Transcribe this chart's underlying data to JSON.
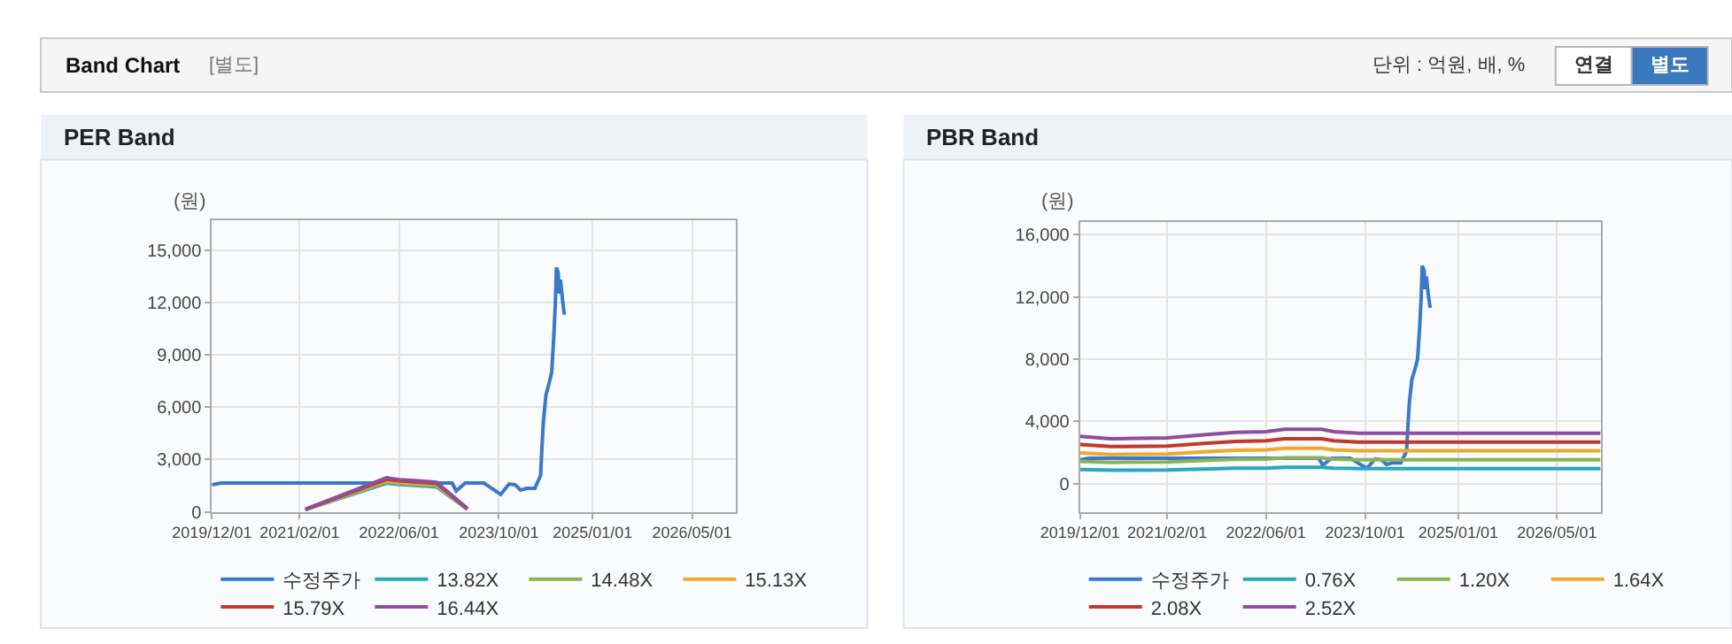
{
  "chart_data": [
    {
      "type": "line",
      "title": "PER Band",
      "ylabel": "(원)",
      "annotations": [
        "Band Chart",
        "[별도]",
        "단위 : 억원, 배, %",
        "연결",
        "별도"
      ],
      "xlim": [
        "2019-12-01",
        "2026-12-01"
      ],
      "xticks": [
        {
          "value": "2019-12-01",
          "label": "2019/12/01"
        },
        {
          "value": "2021-02-01",
          "label": "2021/02/01"
        },
        {
          "value": "2022-06-01",
          "label": "2022/06/01"
        },
        {
          "value": "2023-10-01",
          "label": "2023/10/01"
        },
        {
          "value": "2025-01-01",
          "label": "2025/01/01"
        },
        {
          "value": "2026-05-01",
          "label": "2026/05/01"
        }
      ],
      "ylim": [
        0,
        16700
      ],
      "yticks": [
        {
          "value": 0,
          "label": "0"
        },
        {
          "value": 3000,
          "label": "3,000"
        },
        {
          "value": 6000,
          "label": "6,000"
        },
        {
          "value": 9000,
          "label": "9,000"
        },
        {
          "value": 12000,
          "label": "12,000"
        },
        {
          "value": 15000,
          "label": "15,000"
        }
      ],
      "grid": true,
      "legend": "bottom",
      "series": [
        {
          "name": "수정주가",
          "color": "#3a78c9",
          "x": [
            "2019-12-01",
            "2020-01-15",
            "2023-02-15",
            "2023-03-07",
            "2023-04-20",
            "2023-07-20",
            "2023-10-10",
            "2023-11-20",
            "2023-12-20",
            "2024-01-15",
            "2024-02-15",
            "2024-03-25",
            "2024-04-22",
            "2024-04-28",
            "2024-05-05",
            "2024-05-18",
            "2024-06-01",
            "2024-06-15",
            "2024-06-25",
            "2024-07-03",
            "2024-07-08",
            "2024-07-17",
            "2024-07-22",
            "2024-07-28",
            "2024-08-08",
            "2024-08-16"
          ],
          "values": [
            1550,
            1650,
            1650,
            1200,
            1650,
            1650,
            1000,
            1600,
            1550,
            1250,
            1350,
            1350,
            2100,
            3600,
            5100,
            6700,
            7300,
            8000,
            10000,
            12000,
            14000,
            13700,
            12500,
            13300,
            12000,
            11300
          ]
        },
        {
          "name": "13.82X",
          "color": "#27a9bf",
          "x": [
            "2021-03-01",
            "2022-04-01",
            "2022-06-01",
            "2022-09-01",
            "2022-12-01",
            "2023-05-01"
          ],
          "values": [
            130,
            1640,
            1560,
            1500,
            1430,
            150
          ]
        },
        {
          "name": "14.48X",
          "color": "#8db255",
          "x": [
            "2021-03-01",
            "2022-04-01",
            "2022-06-01",
            "2022-09-01",
            "2022-12-01",
            "2023-05-01"
          ],
          "values": [
            130,
            1720,
            1630,
            1570,
            1500,
            160
          ]
        },
        {
          "name": "15.13X",
          "color": "#f0a830",
          "x": [
            "2021-03-01",
            "2022-04-01",
            "2022-06-01",
            "2022-09-01",
            "2022-12-01",
            "2023-05-01"
          ],
          "values": [
            140,
            1790,
            1700,
            1640,
            1560,
            165
          ]
        },
        {
          "name": "15.79X",
          "color": "#c0392b",
          "x": [
            "2021-03-01",
            "2022-04-01",
            "2022-06-01",
            "2022-09-01",
            "2022-12-01",
            "2023-05-01"
          ],
          "values": [
            145,
            1870,
            1780,
            1710,
            1630,
            175
          ]
        },
        {
          "name": "16.44X",
          "color": "#8e4e9e",
          "x": [
            "2021-03-01",
            "2022-04-01",
            "2022-06-01",
            "2022-09-01",
            "2022-12-01",
            "2023-05-01"
          ],
          "values": [
            150,
            1950,
            1850,
            1780,
            1700,
            180
          ]
        }
      ]
    },
    {
      "type": "line",
      "title": "PBR Band",
      "ylabel": "(원)",
      "xlim": [
        "2019-12-01",
        "2026-12-01"
      ],
      "xticks": [
        {
          "value": "2019-12-01",
          "label": "2019/12/01"
        },
        {
          "value": "2021-02-01",
          "label": "2021/02/01"
        },
        {
          "value": "2022-06-01",
          "label": "2022/06/01"
        },
        {
          "value": "2023-10-01",
          "label": "2023/10/01"
        },
        {
          "value": "2025-01-01",
          "label": "2025/01/01"
        },
        {
          "value": "2026-05-01",
          "label": "2026/05/01"
        }
      ],
      "ylim": [
        -1800,
        16800
      ],
      "yticks": [
        {
          "value": 0,
          "label": "0"
        },
        {
          "value": 4000,
          "label": "4,000"
        },
        {
          "value": 8000,
          "label": "8,000"
        },
        {
          "value": 12000,
          "label": "12,000"
        },
        {
          "value": 16000,
          "label": "16,000"
        }
      ],
      "grid": true,
      "legend": "bottom",
      "series": [
        {
          "name": "수정주가",
          "color": "#3a78c9",
          "x": [
            "2019-12-01",
            "2020-01-15",
            "2023-02-15",
            "2023-03-07",
            "2023-04-20",
            "2023-07-20",
            "2023-10-10",
            "2023-11-20",
            "2023-12-20",
            "2024-01-15",
            "2024-02-15",
            "2024-03-25",
            "2024-04-22",
            "2024-04-28",
            "2024-05-05",
            "2024-05-18",
            "2024-06-01",
            "2024-06-15",
            "2024-06-25",
            "2024-07-03",
            "2024-07-08",
            "2024-07-17",
            "2024-07-22",
            "2024-07-28",
            "2024-08-08",
            "2024-08-16"
          ],
          "values": [
            1550,
            1650,
            1650,
            1200,
            1650,
            1650,
            1000,
            1600,
            1550,
            1250,
            1350,
            1350,
            2100,
            3600,
            5100,
            6700,
            7300,
            8000,
            10000,
            12000,
            14000,
            13700,
            12500,
            13300,
            12000,
            11300
          ]
        },
        {
          "name": "0.76X",
          "color": "#27a9bf",
          "x": [
            "2019-12-01",
            "2020-05-01",
            "2021-02-01",
            "2021-08-01",
            "2022-01-01",
            "2022-06-01",
            "2022-09-01",
            "2023-03-01",
            "2023-05-01",
            "2023-09-01",
            "2026-12-01"
          ],
          "values": [
            920,
            880,
            890,
            950,
            1000,
            1010,
            1060,
            1060,
            1010,
            980,
            980
          ]
        },
        {
          "name": "1.20X",
          "color": "#8db255",
          "x": [
            "2019-12-01",
            "2020-05-01",
            "2021-02-01",
            "2021-08-01",
            "2022-01-01",
            "2022-06-01",
            "2022-09-01",
            "2023-03-01",
            "2023-05-01",
            "2023-09-01",
            "2026-12-01"
          ],
          "values": [
            1450,
            1380,
            1400,
            1500,
            1570,
            1590,
            1670,
            1670,
            1590,
            1550,
            1550
          ]
        },
        {
          "name": "1.64X",
          "color": "#f0a830",
          "x": [
            "2019-12-01",
            "2020-05-01",
            "2021-02-01",
            "2021-08-01",
            "2022-01-01",
            "2022-06-01",
            "2022-09-01",
            "2023-03-01",
            "2023-05-01",
            "2023-09-01",
            "2026-12-01"
          ],
          "values": [
            1990,
            1890,
            1920,
            2050,
            2150,
            2180,
            2280,
            2280,
            2180,
            2120,
            2120
          ]
        },
        {
          "name": "2.08X",
          "color": "#c0392b",
          "x": [
            "2019-12-01",
            "2020-05-01",
            "2021-02-01",
            "2021-08-01",
            "2022-01-01",
            "2022-06-01",
            "2022-09-01",
            "2023-03-01",
            "2023-05-01",
            "2023-09-01",
            "2026-12-01"
          ],
          "values": [
            2520,
            2390,
            2430,
            2600,
            2720,
            2760,
            2890,
            2890,
            2760,
            2680,
            2680
          ]
        },
        {
          "name": "2.52X",
          "color": "#8e4e9e",
          "x": [
            "2019-12-01",
            "2020-05-01",
            "2021-02-01",
            "2021-08-01",
            "2022-01-01",
            "2022-06-01",
            "2022-09-01",
            "2023-03-01",
            "2023-05-01",
            "2023-09-01",
            "2026-12-01"
          ],
          "values": [
            3050,
            2900,
            2950,
            3150,
            3300,
            3350,
            3500,
            3500,
            3350,
            3250,
            3250
          ]
        }
      ]
    }
  ]
}
